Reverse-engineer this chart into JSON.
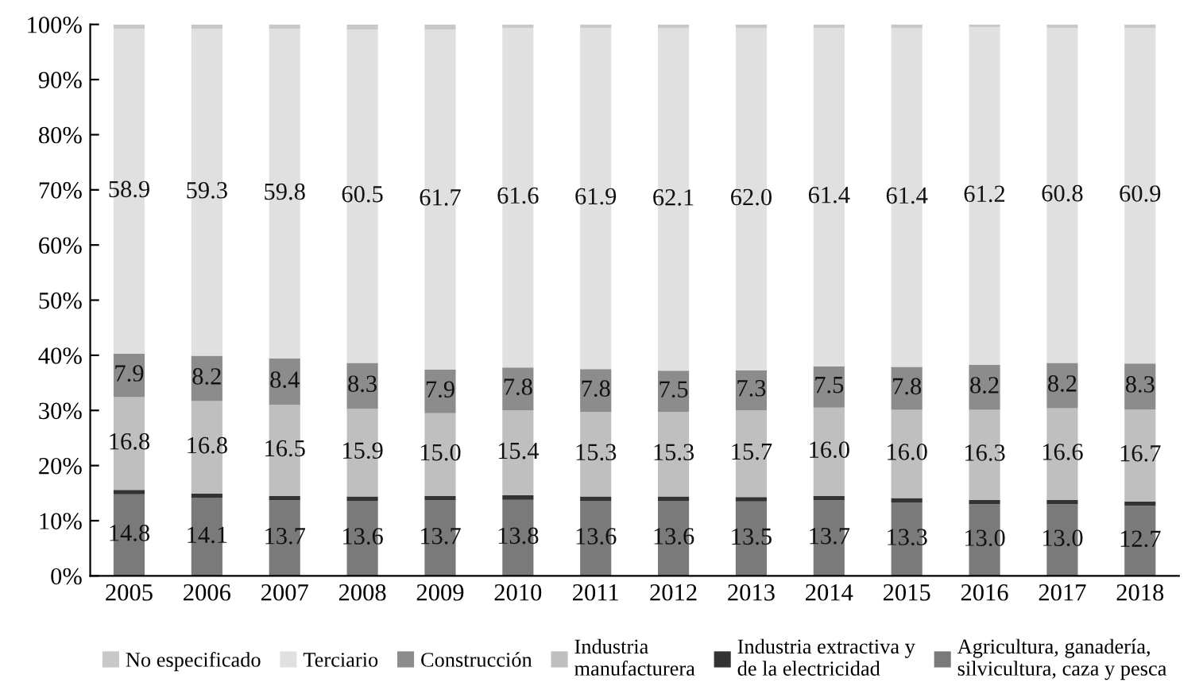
{
  "chart_data": {
    "type": "bar",
    "stacked": true,
    "legend": "bottom",
    "grid": false,
    "categories": [
      "2005",
      "2006",
      "2007",
      "2008",
      "2009",
      "2010",
      "2011",
      "2012",
      "2013",
      "2014",
      "2015",
      "2016",
      "2017",
      "2018"
    ],
    "ylim": [
      0,
      100
    ],
    "yticks": [
      {
        "value": 0,
        "label": "0%"
      },
      {
        "value": 10,
        "label": "10%"
      },
      {
        "value": 20,
        "label": "20%"
      },
      {
        "value": 30,
        "label": "30%"
      },
      {
        "value": 40,
        "label": "40%"
      },
      {
        "value": 50,
        "label": "50%"
      },
      {
        "value": 60,
        "label": "60%"
      },
      {
        "value": 70,
        "label": "70%"
      },
      {
        "value": 80,
        "label": "80%"
      },
      {
        "value": 90,
        "label": "90%"
      },
      {
        "value": 100,
        "label": "100%"
      }
    ],
    "series": [
      {
        "name": "Agricultura, ganadería,\nsilvicultura, caza y pesca",
        "color": "#7a7a7a",
        "values": [
          14.8,
          14.1,
          13.7,
          13.6,
          13.7,
          13.8,
          13.6,
          13.6,
          13.5,
          13.7,
          13.3,
          13.0,
          13.0,
          12.7
        ],
        "value_labels": [
          "14.8",
          "14.1",
          "13.7",
          "13.6",
          "13.7",
          "13.8",
          "13.6",
          "13.6",
          "13.5",
          "13.7",
          "13.3",
          "13.0",
          "13.0",
          "12.7"
        ]
      },
      {
        "name": "Industria extractiva y\nde la electricidad",
        "color": "#333333",
        "values": [
          0.8,
          0.8,
          0.8,
          0.8,
          0.8,
          0.8,
          0.8,
          0.8,
          0.8,
          0.8,
          0.8,
          0.8,
          0.8,
          0.8
        ]
      },
      {
        "name": "Industria\nmanufacturera",
        "color": "#bfbfbf",
        "values": [
          16.8,
          16.8,
          16.5,
          15.9,
          15.0,
          15.4,
          15.3,
          15.3,
          15.7,
          16.0,
          16.0,
          16.3,
          16.6,
          16.7
        ],
        "value_labels": [
          "16.8",
          "16.8",
          "16.5",
          "15.9",
          "15.0",
          "15.4",
          "15.3",
          "15.3",
          "15.7",
          "16.0",
          "16.0",
          "16.3",
          "16.6",
          "16.7"
        ]
      },
      {
        "name": "Construcción",
        "color": "#8c8c8c",
        "values": [
          7.9,
          8.2,
          8.4,
          8.3,
          7.9,
          7.8,
          7.8,
          7.5,
          7.3,
          7.5,
          7.8,
          8.2,
          8.2,
          8.3
        ],
        "value_labels": [
          "7.9",
          "8.2",
          "8.4",
          "8.3",
          "7.9",
          "7.8",
          "7.8",
          "7.5",
          "7.3",
          "7.5",
          "7.8",
          "8.2",
          "8.2",
          "8.3"
        ]
      },
      {
        "name": "Terciario",
        "color": "#e0e0e0",
        "values": [
          58.9,
          59.3,
          59.8,
          60.5,
          61.7,
          61.6,
          61.9,
          62.1,
          62.0,
          61.4,
          61.4,
          61.2,
          60.8,
          60.9
        ],
        "value_labels": [
          "58.9",
          "59.3",
          "59.8",
          "60.5",
          "61.7",
          "61.6",
          "61.9",
          "62.1",
          "62.0",
          "61.4",
          "61.4",
          "61.2",
          "60.8",
          "60.9"
        ]
      },
      {
        "name": "No especificado",
        "color": "#c8c8c8",
        "values": [
          0.8,
          0.8,
          0.8,
          0.9,
          0.9,
          0.6,
          0.6,
          0.7,
          0.7,
          0.6,
          0.7,
          0.5,
          0.6,
          0.6
        ]
      }
    ]
  }
}
